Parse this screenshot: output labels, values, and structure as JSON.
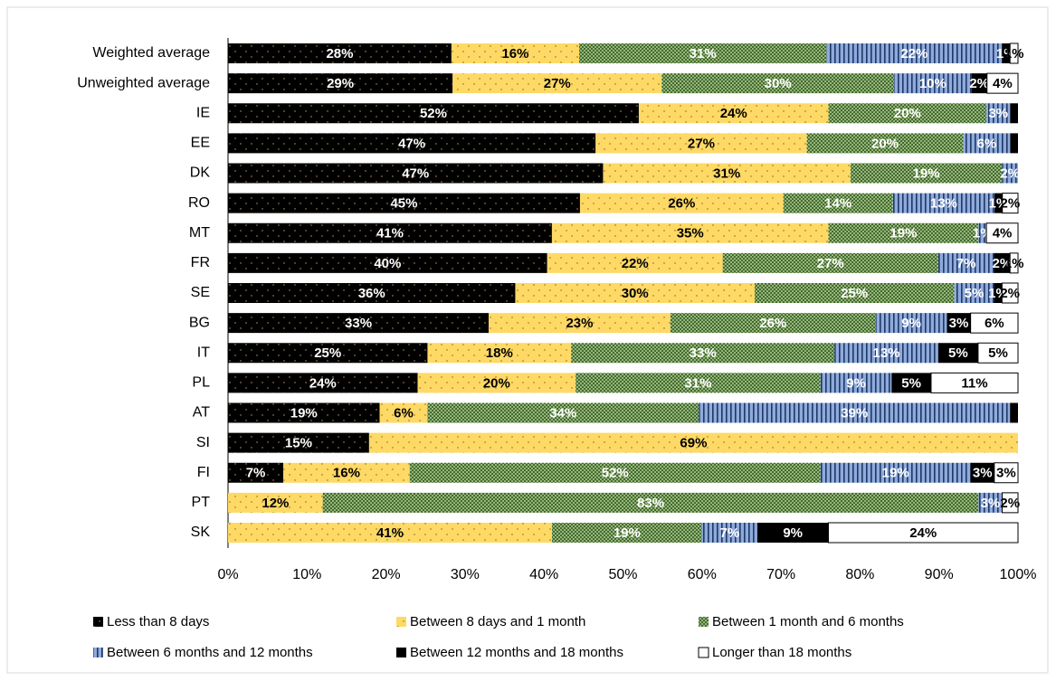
{
  "chart_data": {
    "type": "bar",
    "orientation": "horizontal",
    "stacking": "percent",
    "categories": [
      "Weighted average",
      "Unweighted average",
      "IE",
      "EE",
      "DK",
      "RO",
      "MT",
      "FR",
      "SE",
      "BG",
      "IT",
      "PL",
      "AT",
      "SI",
      "FI",
      "PT",
      "SK"
    ],
    "series": [
      {
        "name": "Less than 8 days",
        "color": "#000000",
        "values": [
          28,
          29,
          52,
          47,
          47,
          45,
          41,
          40,
          36,
          33,
          25,
          24,
          19,
          15,
          7,
          0,
          0
        ],
        "value_labels": [
          "28%",
          "29%",
          "52%",
          "47%",
          "47%",
          "45%",
          "41%",
          "40%",
          "36%",
          "33%",
          "25%",
          "24%",
          "19%",
          "15%",
          "7%",
          null,
          null
        ]
      },
      {
        "name": "Between 8 days and 1 month",
        "color": "#ffd966",
        "values": [
          16,
          27,
          24,
          27,
          31,
          26,
          35,
          22,
          30,
          23,
          18,
          20,
          6,
          69,
          16,
          12,
          41
        ],
        "value_labels": [
          "16%",
          "27%",
          "24%",
          "27%",
          "31%",
          "26%",
          "35%",
          "22%",
          "30%",
          "23%",
          "18%",
          "20%",
          "6%",
          "69%",
          "16%",
          "12%",
          "41%"
        ]
      },
      {
        "name": "Between 1 month and 6 months",
        "color": "#a9d18e",
        "values": [
          31,
          30,
          20,
          20,
          19,
          14,
          19,
          27,
          25,
          26,
          33,
          31,
          34,
          0,
          52,
          83,
          19
        ],
        "value_labels": [
          "31%",
          "30%",
          "20%",
          "20%",
          "19%",
          "14%",
          "19%",
          "27%",
          "25%",
          "26%",
          "33%",
          "31%",
          "34%",
          null,
          "52%",
          "83%",
          "19%"
        ]
      },
      {
        "name": "Between 6 months and 12 months",
        "color": "#8faadc",
        "values": [
          22,
          10,
          3,
          6,
          2,
          13,
          1,
          7,
          5,
          9,
          13,
          9,
          39,
          0,
          19,
          3,
          7
        ],
        "value_labels": [
          "22%",
          "10%",
          "3%",
          "6%",
          "2%",
          "13%",
          "1%",
          "7%",
          "5%",
          "9%",
          "13%",
          "9%",
          "39%",
          null,
          "19%",
          "3%",
          "7%"
        ]
      },
      {
        "name": "Between 12 months and 18 months",
        "color": "#000000",
        "values": [
          1,
          2,
          1,
          1,
          0,
          1,
          0,
          2,
          1,
          3,
          5,
          5,
          1,
          0,
          3,
          0,
          9
        ],
        "value_labels": [
          "1%",
          "2%",
          null,
          null,
          null,
          "1%",
          null,
          "2%",
          "1%",
          "3%",
          "5%",
          "5%",
          null,
          null,
          "3%",
          null,
          "9%"
        ]
      },
      {
        "name": "Longer than 18 months",
        "color": "#ffffff",
        "values": [
          1,
          4,
          0,
          0,
          0,
          2,
          4,
          1,
          2,
          6,
          5,
          11,
          0,
          0,
          3,
          2,
          24
        ],
        "value_labels": [
          "1%",
          "4%",
          null,
          null,
          null,
          "2%",
          "4%",
          "1%",
          "2%",
          "6%",
          "5%",
          "11%",
          null,
          null,
          "3%",
          "2%",
          "24%"
        ]
      }
    ],
    "xlim": [
      0,
      100
    ],
    "xticks": [
      {
        "value": 0,
        "label": "0%"
      },
      {
        "value": 10,
        "label": "10%"
      },
      {
        "value": 20,
        "label": "20%"
      },
      {
        "value": 30,
        "label": "30%"
      },
      {
        "value": 40,
        "label": "40%"
      },
      {
        "value": 50,
        "label": "50%"
      },
      {
        "value": 60,
        "label": "60%"
      },
      {
        "value": 70,
        "label": "70%"
      },
      {
        "value": 80,
        "label": "80%"
      },
      {
        "value": 90,
        "label": "90%"
      },
      {
        "value": 100,
        "label": "100%"
      }
    ],
    "grid": false,
    "legend": "bottom"
  }
}
